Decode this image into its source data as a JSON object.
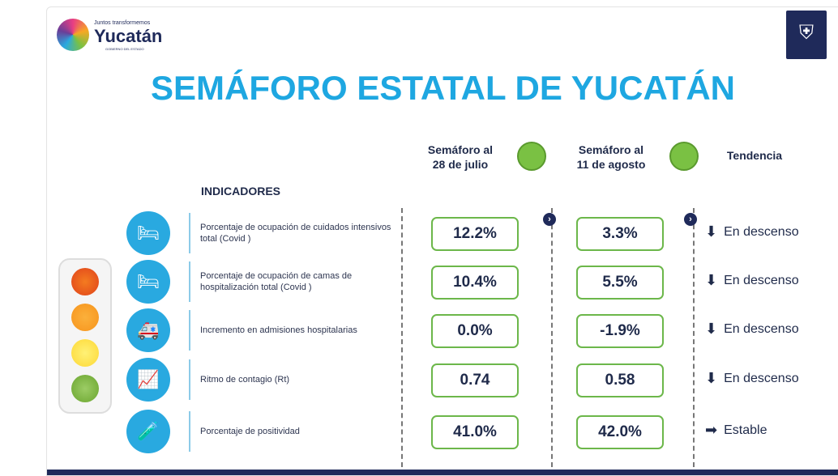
{
  "logo": {
    "tagline": "Juntos transformemos",
    "name": "Yucatán",
    "sub": "GOBIERNO DEL ESTADO"
  },
  "title": "SEMÁFORO ESTATAL DE YUCATÁN",
  "columns": {
    "c1": "Semáforo al",
    "c1b": "28 de julio",
    "c2": "Semáforo al",
    "c2b": "11 de agosto",
    "c3": "Tendencia",
    "indicators": "INDICADORES"
  },
  "colors": {
    "green": "#7ac143",
    "title": "#1ea7e1"
  },
  "rows": [
    {
      "label": "Porcentaje de ocupación de cuidados intensivos total (Covid )",
      "v1": "12.2%",
      "v2": "3.3%",
      "trend": "En descenso",
      "arrow": "down",
      "icon": "icu-bed-icon"
    },
    {
      "label": "Porcentaje de ocupación de camas de hospitalización total (Covid )",
      "v1": "10.4%",
      "v2": "5.5%",
      "trend": "En descenso",
      "arrow": "down",
      "icon": "hospital-bed-icon"
    },
    {
      "label": "Incremento en admisiones hospitalarias",
      "v1": "0.0%",
      "v2": "-1.9%",
      "trend": "En descenso",
      "arrow": "down",
      "icon": "ambulance-icon"
    },
    {
      "label": "Ritmo de contagio (Rt)",
      "v1": "0.74",
      "v2": "0.58",
      "trend": "En descenso",
      "arrow": "down",
      "icon": "virus-chart-icon"
    },
    {
      "label": "Porcentaje de positividad",
      "v1": "41.0%",
      "v2": "42.0%",
      "trend": "Estable",
      "arrow": "right",
      "icon": "swab-test-icon"
    }
  ]
}
